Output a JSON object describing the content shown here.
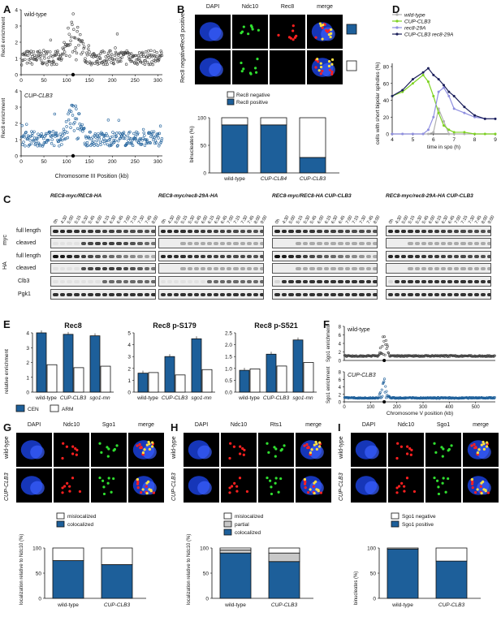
{
  "panels": {
    "A": {
      "letter": "A",
      "top_label": "wild-type",
      "bottom_label": "CUP-CLB3",
      "ylabel": "Rec8 enrichment",
      "xlabel": "Chromosome III Position (kb)",
      "yticks": [
        "0",
        "1",
        "2",
        "3",
        "4"
      ],
      "xticks": [
        "0",
        "50",
        "100",
        "150",
        "200",
        "250",
        "300"
      ]
    },
    "B": {
      "letter": "B",
      "channels": [
        "DAPI",
        "Ndc10",
        "Rec8",
        "merge"
      ],
      "rows": [
        "Rec8 positive",
        "Rec8 negative"
      ],
      "legend": [
        "Rec8 negative",
        "Rec8 positive"
      ],
      "ylabel": "binucleates (%)",
      "yticks": [
        "0",
        "50",
        "100"
      ],
      "categories": [
        "wild-type",
        "CUP-CLB4",
        "CUP-CLB3"
      ]
    },
    "C": {
      "letter": "C",
      "headers": [
        "REC8-myc/REC8-HA",
        "REC8-myc/rec8-29A-HA",
        "REC8-myc/REC8-HA CUP-CLB3",
        "REC8-myc/rec8-29A-HA CUP-CLB3"
      ],
      "timepoints_a": [
        "0h",
        "4:30",
        "5:00",
        "5:15",
        "5:30",
        "5:45",
        "6:00",
        "6:15",
        "6:30",
        "6:45",
        "7:00",
        "7:15",
        "7:30",
        "7:45",
        "8:00"
      ],
      "timepoints_b": [
        "0h",
        "4:30",
        "5:00",
        "5:15",
        "5:30",
        "5:45",
        "6:00",
        "6:15",
        "6:30",
        "6:45",
        "7:00",
        "7:15",
        "7:30",
        "7:45",
        "8:00",
        "9:00"
      ],
      "groups": [
        "myc",
        "HA"
      ],
      "rows": [
        "full length",
        "cleaved",
        "full length",
        "cleaved",
        "Clb3",
        "Pgk1"
      ]
    },
    "D": {
      "letter": "D",
      "ylabel": "cells with short bipolar spindles (%)",
      "xlabel": "time in spo (h)",
      "legend": [
        "wild-type",
        "CUP-CLB3",
        "rec8-29A",
        "CUP-CLB3  rec8-29A"
      ],
      "yticks": [
        "0",
        "20",
        "40",
        "60",
        "80"
      ],
      "xticks": [
        "4",
        "5",
        "6",
        "7",
        "8",
        "9"
      ]
    },
    "E": {
      "letter": "E",
      "subtitles": [
        "Rec8",
        "Rec8 p-S179",
        "Rec8 p-S521"
      ],
      "ylabel": "relative enrichment",
      "categories": [
        "wild-type",
        "CUP-CLB3",
        "sgo1-mn"
      ],
      "legend": [
        "CEN",
        "ARM"
      ],
      "yticks_1": [
        "0",
        "1",
        "2",
        "3",
        "4"
      ],
      "yticks_2": [
        "0",
        "1",
        "2",
        "3",
        "4",
        "5"
      ],
      "yticks_3": [
        "0.0",
        "0.5",
        "1.0",
        "1.5",
        "2.0",
        "2.5"
      ]
    },
    "F": {
      "letter": "F",
      "top_label": "wild-type",
      "bottom_label": "CUP-CLB3",
      "ylabel": "Sgo1 enrichment",
      "xlabel": "Chromosome V position (kb)",
      "yticks": [
        "0",
        "2",
        "4",
        "6",
        "8"
      ],
      "xticks": [
        "0",
        "100",
        "200",
        "300",
        "400",
        "500"
      ]
    },
    "G": {
      "letter": "G",
      "channels": [
        "DAPI",
        "Ndc10",
        "Sgo1",
        "merge"
      ],
      "rows": [
        "wild-type",
        "CUP-CLB3"
      ],
      "legend": [
        "mislocalized",
        "colocalized"
      ],
      "ylabel": "localization relative to Ndc10 (%)",
      "yticks": [
        "0",
        "50",
        "100"
      ],
      "categories": [
        "wild-type",
        "CUP-CLB3"
      ]
    },
    "H": {
      "letter": "H",
      "channels": [
        "DAPI",
        "Ndc10",
        "Rts1",
        "merge"
      ],
      "rows": [
        "wild-type",
        "CUP-CLB3"
      ],
      "legend": [
        "mislocalized",
        "partial",
        "colocalized"
      ],
      "ylabel": "localization relative to Ndc10 (%)",
      "yticks": [
        "0",
        "50",
        "100"
      ],
      "categories": [
        "wild-type",
        "CUP-CLB3"
      ]
    },
    "I": {
      "letter": "I",
      "channels": [
        "DAPI",
        "Ndc10",
        "Sgo1",
        "merge"
      ],
      "rows": [
        "wild-type",
        "CUP-CLB3"
      ],
      "legend": [
        "Sgo1 negative",
        "Sgo1 positive"
      ],
      "ylabel": "binucleates (%)",
      "yticks": [
        "0",
        "50",
        "100"
      ],
      "categories": [
        "wild-type",
        "CUP-CLB3"
      ]
    }
  },
  "colors": {
    "blue": "#1d5f9a",
    "dark": "#3a3a3a",
    "green": "#7ed321",
    "lavender": "#8f8fe0",
    "navy": "#1b1f5a",
    "grey": "#b0b0b0"
  },
  "chart_data": [
    {
      "type": "bar",
      "panel": "B",
      "categories": [
        "wild-type",
        "CUP-CLB4",
        "CUP-CLB3"
      ],
      "series": [
        {
          "name": "Rec8 positive",
          "values": [
            87,
            87,
            28
          ]
        },
        {
          "name": "Rec8 negative",
          "values": [
            13,
            13,
            72
          ]
        }
      ],
      "stacked": true,
      "ylim": [
        0,
        100
      ]
    },
    {
      "type": "line",
      "panel": "D",
      "x": [
        4,
        4.5,
        5,
        5.5,
        5.75,
        6,
        6.25,
        6.5,
        6.75,
        7,
        7.5,
        8,
        8.5,
        9
      ],
      "series": [
        {
          "name": "wild-type",
          "values": [
            0,
            0,
            0,
            0,
            0,
            2,
            30,
            15,
            0,
            0,
            0,
            0,
            0,
            0
          ]
        },
        {
          "name": "CUP-CLB3",
          "values": [
            45,
            50,
            60,
            70,
            62,
            45,
            25,
            10,
            5,
            2,
            2,
            0,
            0,
            0
          ]
        },
        {
          "name": "rec8-29A",
          "values": [
            0,
            0,
            0,
            0,
            5,
            20,
            50,
            55,
            45,
            30,
            25,
            20,
            18,
            18
          ]
        },
        {
          "name": "CUP-CLB3  rec8-29A",
          "values": [
            45,
            52,
            65,
            73,
            78,
            70,
            65,
            58,
            50,
            45,
            32,
            22,
            18,
            18
          ]
        }
      ],
      "xlim": [
        4,
        9
      ],
      "ylim": [
        0,
        80
      ]
    },
    {
      "type": "bar",
      "panel": "E-Rec8",
      "categories": [
        "wild-type",
        "CUP-CLB3",
        "sgo1-mn"
      ],
      "series": [
        {
          "name": "CEN",
          "values": [
            4.0,
            3.9,
            3.8
          ]
        },
        {
          "name": "ARM",
          "values": [
            1.85,
            1.65,
            1.75
          ]
        }
      ],
      "ylim": [
        0,
        4
      ]
    },
    {
      "type": "bar",
      "panel": "E-S179",
      "categories": [
        "wild-type",
        "CUP-CLB3",
        "sgo1-mn"
      ],
      "series": [
        {
          "name": "CEN",
          "values": [
            1.6,
            3.0,
            4.5
          ]
        },
        {
          "name": "ARM",
          "values": [
            1.65,
            1.45,
            1.9
          ]
        }
      ],
      "ylim": [
        0,
        5
      ]
    },
    {
      "type": "bar",
      "panel": "E-S521",
      "categories": [
        "wild-type",
        "CUP-CLB3",
        "sgo1-mn"
      ],
      "series": [
        {
          "name": "CEN",
          "values": [
            0.92,
            1.6,
            2.2
          ]
        },
        {
          "name": "ARM",
          "values": [
            0.98,
            1.1,
            1.25
          ]
        }
      ],
      "ylim": [
        0,
        2.5
      ]
    },
    {
      "type": "bar",
      "panel": "G",
      "categories": [
        "wild-type",
        "CUP-CLB3"
      ],
      "series": [
        {
          "name": "colocalized",
          "values": [
            75,
            67
          ]
        },
        {
          "name": "mislocalized",
          "values": [
            25,
            33
          ]
        }
      ],
      "stacked": true,
      "ylim": [
        0,
        100
      ]
    },
    {
      "type": "bar",
      "panel": "H",
      "categories": [
        "wild-type",
        "CUP-CLB3"
      ],
      "series": [
        {
          "name": "colocalized",
          "values": [
            90,
            73
          ]
        },
        {
          "name": "partial",
          "values": [
            6,
            17
          ]
        },
        {
          "name": "mislocalized",
          "values": [
            4,
            10
          ]
        }
      ],
      "stacked": true,
      "ylim": [
        0,
        100
      ]
    },
    {
      "type": "bar",
      "panel": "I",
      "categories": [
        "wild-type",
        "CUP-CLB3"
      ],
      "series": [
        {
          "name": "Sgo1 positive",
          "values": [
            98,
            74
          ]
        },
        {
          "name": "Sgo1 negative",
          "values": [
            2,
            26
          ]
        }
      ],
      "stacked": true,
      "ylim": [
        0,
        100
      ]
    }
  ]
}
